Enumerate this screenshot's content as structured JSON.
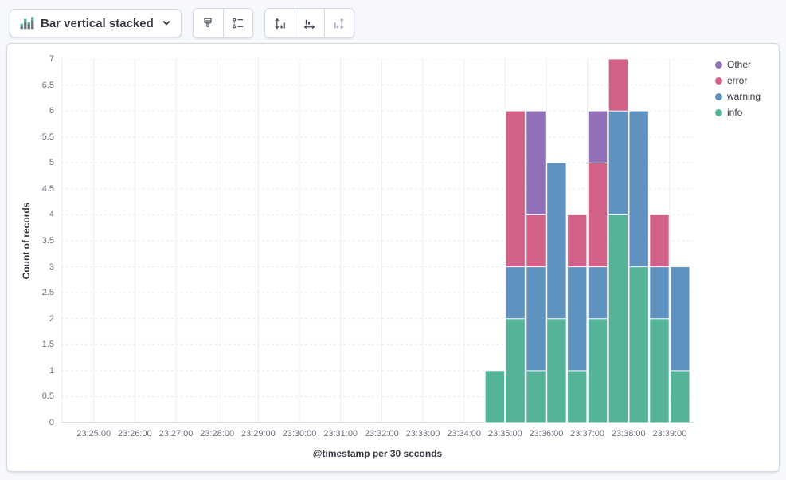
{
  "toolbar": {
    "chart_type": {
      "label": "Bar vertical stacked",
      "icon": "bar-vertical-stacked-icon"
    },
    "style_buttons": [
      {
        "name": "visual-options",
        "icon": "brush-icon",
        "disabled": false
      },
      {
        "name": "legend-settings",
        "icon": "legend-list-icon",
        "disabled": false
      }
    ],
    "axis_buttons": [
      {
        "name": "left-axis",
        "icon": "axis-left-icon",
        "disabled": false
      },
      {
        "name": "bottom-axis",
        "icon": "axis-bottom-icon",
        "disabled": false
      },
      {
        "name": "right-axis",
        "icon": "axis-right-icon",
        "disabled": true
      }
    ]
  },
  "legend": {
    "position": "right",
    "items": [
      {
        "label": "Other",
        "color": "#9170B8"
      },
      {
        "label": "error",
        "color": "#D36086"
      },
      {
        "label": "warning",
        "color": "#6092C0"
      },
      {
        "label": "info",
        "color": "#54B399"
      }
    ]
  },
  "chart_data": {
    "type": "bar",
    "stacked": true,
    "orientation": "vertical",
    "title": "",
    "xlabel": "@timestamp per 30 seconds",
    "ylabel": "Count of records",
    "ylim": [
      0,
      7
    ],
    "y_tick_labels": [
      "0",
      "0.5",
      "1",
      "1.5",
      "2",
      "2.5",
      "3",
      "3.5",
      "4",
      "4.5",
      "5",
      "5.5",
      "6",
      "6.5",
      "7"
    ],
    "x_tick_labels": [
      "23:25:00",
      "23:26:00",
      "23:27:00",
      "23:28:00",
      "23:29:00",
      "23:30:00",
      "23:31:00",
      "23:32:00",
      "23:33:00",
      "23:34:00",
      "23:35:00",
      "23:36:00",
      "23:37:00",
      "23:38:00",
      "23:39:00"
    ],
    "bucket_seconds": 30,
    "categories": [
      "23:34:30",
      "23:35:00",
      "23:35:30",
      "23:36:00",
      "23:36:30",
      "23:37:00",
      "23:37:30",
      "23:38:00",
      "23:38:30",
      "23:39:00"
    ],
    "series": [
      {
        "name": "info",
        "color": "#54B399",
        "values": [
          1,
          2,
          1,
          2,
          1,
          2,
          4,
          3,
          2,
          1
        ]
      },
      {
        "name": "warning",
        "color": "#6092C0",
        "values": [
          0,
          1,
          2,
          3,
          2,
          1,
          2,
          3,
          1,
          2
        ]
      },
      {
        "name": "error",
        "color": "#D36086",
        "values": [
          0,
          3,
          1,
          0,
          1,
          2,
          1,
          0,
          1,
          0
        ]
      },
      {
        "name": "Other",
        "color": "#9170B8",
        "values": [
          0,
          0,
          2,
          0,
          0,
          1,
          0,
          0,
          0,
          0
        ]
      }
    ],
    "bar_totals": [
      1,
      6,
      6,
      5,
      4,
      6,
      7,
      6,
      4,
      3
    ],
    "gridlines": {
      "horizontal": "dashed",
      "vertical": "solid"
    },
    "legend_order": [
      "Other",
      "error",
      "warning",
      "info"
    ]
  }
}
